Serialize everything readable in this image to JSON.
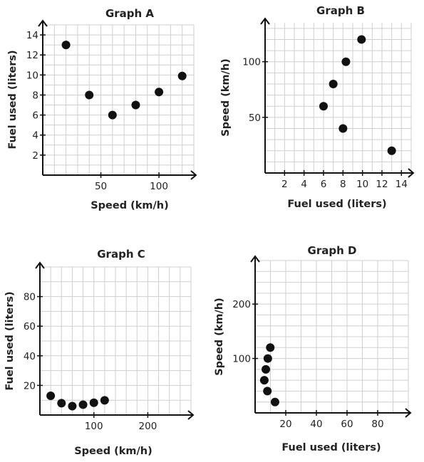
{
  "chart_data": [
    {
      "type": "scatter",
      "title": "Graph A",
      "xlabel": "Speed (km/h)",
      "ylabel": "Fuel used (liters)",
      "xlim": [
        0,
        130
      ],
      "ylim": [
        0,
        15
      ],
      "xticks": [
        50,
        100
      ],
      "yticks": [
        2,
        4,
        6,
        8,
        10,
        12,
        14
      ],
      "grid": true,
      "points": [
        {
          "x": 20,
          "y": 13
        },
        {
          "x": 40,
          "y": 8
        },
        {
          "x": 60,
          "y": 6
        },
        {
          "x": 80,
          "y": 7
        },
        {
          "x": 100,
          "y": 8.3
        },
        {
          "x": 120,
          "y": 9.9
        }
      ]
    },
    {
      "type": "scatter",
      "title": "Graph B",
      "xlabel": "Fuel used (liters)",
      "ylabel": "Speed (km/h)",
      "xlim": [
        0,
        15
      ],
      "ylim": [
        0,
        135
      ],
      "xticks": [
        2,
        4,
        6,
        8,
        10,
        12,
        14
      ],
      "yticks": [
        50,
        100
      ],
      "grid": true,
      "points": [
        {
          "x": 6,
          "y": 60
        },
        {
          "x": 7,
          "y": 80
        },
        {
          "x": 8,
          "y": 40
        },
        {
          "x": 8.3,
          "y": 100
        },
        {
          "x": 9.9,
          "y": 120
        },
        {
          "x": 13,
          "y": 20
        }
      ]
    },
    {
      "type": "scatter",
      "title": "Graph C",
      "xlabel": "Speed (km/h)",
      "ylabel": "Fuel used (liters)",
      "xlim": [
        0,
        280
      ],
      "ylim": [
        0,
        100
      ],
      "xticks": [
        100,
        200
      ],
      "yticks": [
        20,
        40,
        60,
        80
      ],
      "grid": true,
      "points": [
        {
          "x": 20,
          "y": 13
        },
        {
          "x": 40,
          "y": 8
        },
        {
          "x": 60,
          "y": 6
        },
        {
          "x": 80,
          "y": 7
        },
        {
          "x": 100,
          "y": 8.3
        },
        {
          "x": 120,
          "y": 9.9
        }
      ]
    },
    {
      "type": "scatter",
      "title": "Graph D",
      "xlabel": "Fuel used (liters)",
      "ylabel": "Speed (km/h)",
      "xlim": [
        0,
        100
      ],
      "ylim": [
        0,
        280
      ],
      "xticks": [
        20,
        40,
        60,
        80
      ],
      "yticks": [
        100,
        200
      ],
      "grid": true,
      "points": [
        {
          "x": 6,
          "y": 60
        },
        {
          "x": 7,
          "y": 80
        },
        {
          "x": 8,
          "y": 40
        },
        {
          "x": 8.3,
          "y": 100
        },
        {
          "x": 9.9,
          "y": 120
        },
        {
          "x": 13,
          "y": 20
        }
      ]
    }
  ]
}
